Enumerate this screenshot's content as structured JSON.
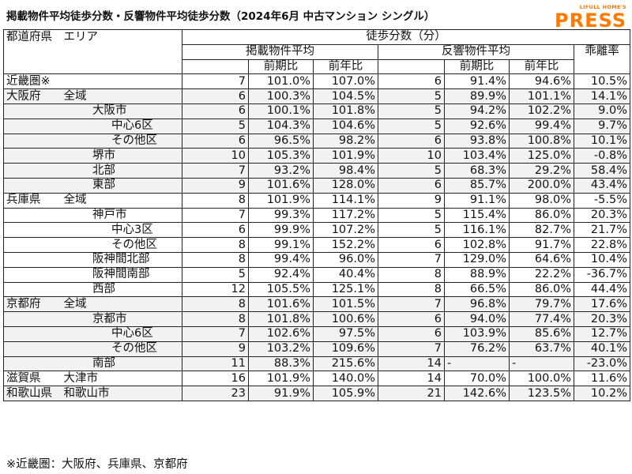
{
  "header": {
    "title": "掲載物件平均徒歩分数・反響物件平均徒歩分数（2024年6月 中古マンション シングル）",
    "logo_top": "LIFULL HOME'S",
    "logo_main": "PRESS"
  },
  "table": {
    "head_region": "都道府県　エリア",
    "head_group": "徒歩分数（分）",
    "head_listing": "掲載物件平均",
    "head_response": "反響物件平均",
    "head_gap": "乖離率",
    "head_mom": "前期比",
    "head_yoy": "前年比",
    "rows": [
      {
        "area": "近畿圏※",
        "level": 0,
        "l": "7",
        "lm": "101.0%",
        "ly": "107.0%",
        "r": "6",
        "rm": "91.4%",
        "ry": "94.6%",
        "gap": "10.5%"
      },
      {
        "area": "大阪府　　全域",
        "level": 0,
        "l": "6",
        "lm": "100.3%",
        "ly": "104.5%",
        "r": "5",
        "rm": "89.9%",
        "ry": "101.1%",
        "gap": "14.1%"
      },
      {
        "area": "大阪市",
        "level": 1,
        "l": "6",
        "lm": "100.1%",
        "ly": "101.8%",
        "r": "5",
        "rm": "94.2%",
        "ry": "102.2%",
        "gap": "9.0%"
      },
      {
        "area": "中心6区",
        "level": 2,
        "l": "5",
        "lm": "104.3%",
        "ly": "104.6%",
        "r": "5",
        "rm": "92.6%",
        "ry": "99.4%",
        "gap": "9.7%"
      },
      {
        "area": "その他区",
        "level": 2,
        "l": "6",
        "lm": "96.5%",
        "ly": "98.2%",
        "r": "6",
        "rm": "93.8%",
        "ry": "100.8%",
        "gap": "10.1%"
      },
      {
        "area": "堺市",
        "level": 1,
        "l": "10",
        "lm": "105.3%",
        "ly": "101.9%",
        "r": "10",
        "rm": "103.4%",
        "ry": "125.0%",
        "gap": "-0.8%"
      },
      {
        "area": "北部",
        "level": 1,
        "l": "7",
        "lm": "93.2%",
        "ly": "98.4%",
        "r": "5",
        "rm": "68.3%",
        "ry": "29.2%",
        "gap": "58.4%"
      },
      {
        "area": "東部",
        "level": 1,
        "l": "9",
        "lm": "101.6%",
        "ly": "128.0%",
        "r": "6",
        "rm": "85.7%",
        "ry": "200.0%",
        "gap": "43.4%"
      },
      {
        "area": "兵庫県　　全域",
        "level": 0,
        "l": "8",
        "lm": "101.9%",
        "ly": "114.1%",
        "r": "9",
        "rm": "91.1%",
        "ry": "98.0%",
        "gap": "-5.5%"
      },
      {
        "area": "神戸市",
        "level": 1,
        "l": "7",
        "lm": "99.3%",
        "ly": "117.2%",
        "r": "5",
        "rm": "115.4%",
        "ry": "86.0%",
        "gap": "20.3%"
      },
      {
        "area": "中心3区",
        "level": 2,
        "l": "6",
        "lm": "99.9%",
        "ly": "107.2%",
        "r": "5",
        "rm": "116.1%",
        "ry": "82.7%",
        "gap": "21.7%"
      },
      {
        "area": "その他区",
        "level": 2,
        "l": "8",
        "lm": "99.1%",
        "ly": "152.2%",
        "r": "6",
        "rm": "102.8%",
        "ry": "91.7%",
        "gap": "22.8%"
      },
      {
        "area": "阪神間北部",
        "level": 1,
        "l": "8",
        "lm": "99.4%",
        "ly": "96.0%",
        "r": "7",
        "rm": "129.0%",
        "ry": "64.6%",
        "gap": "10.4%"
      },
      {
        "area": "阪神間南部",
        "level": 1,
        "l": "5",
        "lm": "92.4%",
        "ly": "40.4%",
        "r": "8",
        "rm": "88.9%",
        "ry": "22.2%",
        "gap": "-36.7%"
      },
      {
        "area": "西部",
        "level": 1,
        "l": "12",
        "lm": "105.5%",
        "ly": "125.1%",
        "r": "8",
        "rm": "66.5%",
        "ry": "86.0%",
        "gap": "44.4%"
      },
      {
        "area": "京都府　　全域",
        "level": 0,
        "l": "8",
        "lm": "101.6%",
        "ly": "101.5%",
        "r": "7",
        "rm": "96.8%",
        "ry": "79.7%",
        "gap": "17.6%"
      },
      {
        "area": "京都市",
        "level": 1,
        "l": "8",
        "lm": "101.8%",
        "ly": "100.6%",
        "r": "6",
        "rm": "94.0%",
        "ry": "77.4%",
        "gap": "20.3%"
      },
      {
        "area": "中心6区",
        "level": 2,
        "l": "7",
        "lm": "102.6%",
        "ly": "97.5%",
        "r": "6",
        "rm": "103.9%",
        "ry": "85.6%",
        "gap": "12.7%"
      },
      {
        "area": "その他区",
        "level": 2,
        "l": "9",
        "lm": "103.2%",
        "ly": "109.6%",
        "r": "7",
        "rm": "76.2%",
        "ry": "63.7%",
        "gap": "40.1%"
      },
      {
        "area": "南部",
        "level": 1,
        "l": "11",
        "lm": "88.3%",
        "ly": "215.6%",
        "r": "14",
        "rm": "-",
        "ry": "-",
        "gap": "-23.0%"
      },
      {
        "area": "滋賀県　　大津市",
        "level": 0,
        "l": "16",
        "lm": "101.9%",
        "ly": "140.0%",
        "r": "14",
        "rm": "70.0%",
        "ry": "100.0%",
        "gap": "11.6%"
      },
      {
        "area": "和歌山県　和歌山市",
        "level": 0,
        "l": "23",
        "lm": "91.9%",
        "ly": "105.9%",
        "r": "21",
        "rm": "142.6%",
        "ry": "123.5%",
        "gap": "10.2%"
      }
    ]
  },
  "footnote": "※近畿圏：大阪府、兵庫県、京都府",
  "colors": {
    "logo": "#ff7a00",
    "row_shade": "#f2f2f2",
    "border": "#222222"
  }
}
